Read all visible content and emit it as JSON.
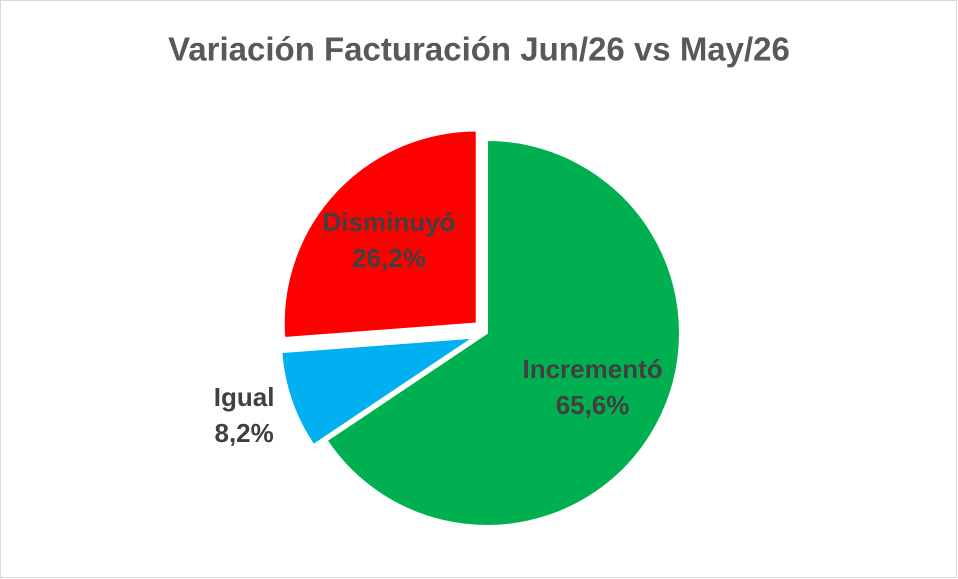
{
  "chart_data": {
    "type": "pie",
    "title": "Variación Facturación Jun/26 vs May/26",
    "categories": [
      "Incrementó",
      "Igual",
      "Disminuyó"
    ],
    "values": [
      65.6,
      8.2,
      26.2
    ],
    "value_labels": [
      "65,6%",
      "8,2%",
      "26,2%"
    ],
    "colors": [
      "#00b050",
      "#00b0f0",
      "#ff0000"
    ],
    "exploded": [
      false,
      true,
      true
    ]
  }
}
